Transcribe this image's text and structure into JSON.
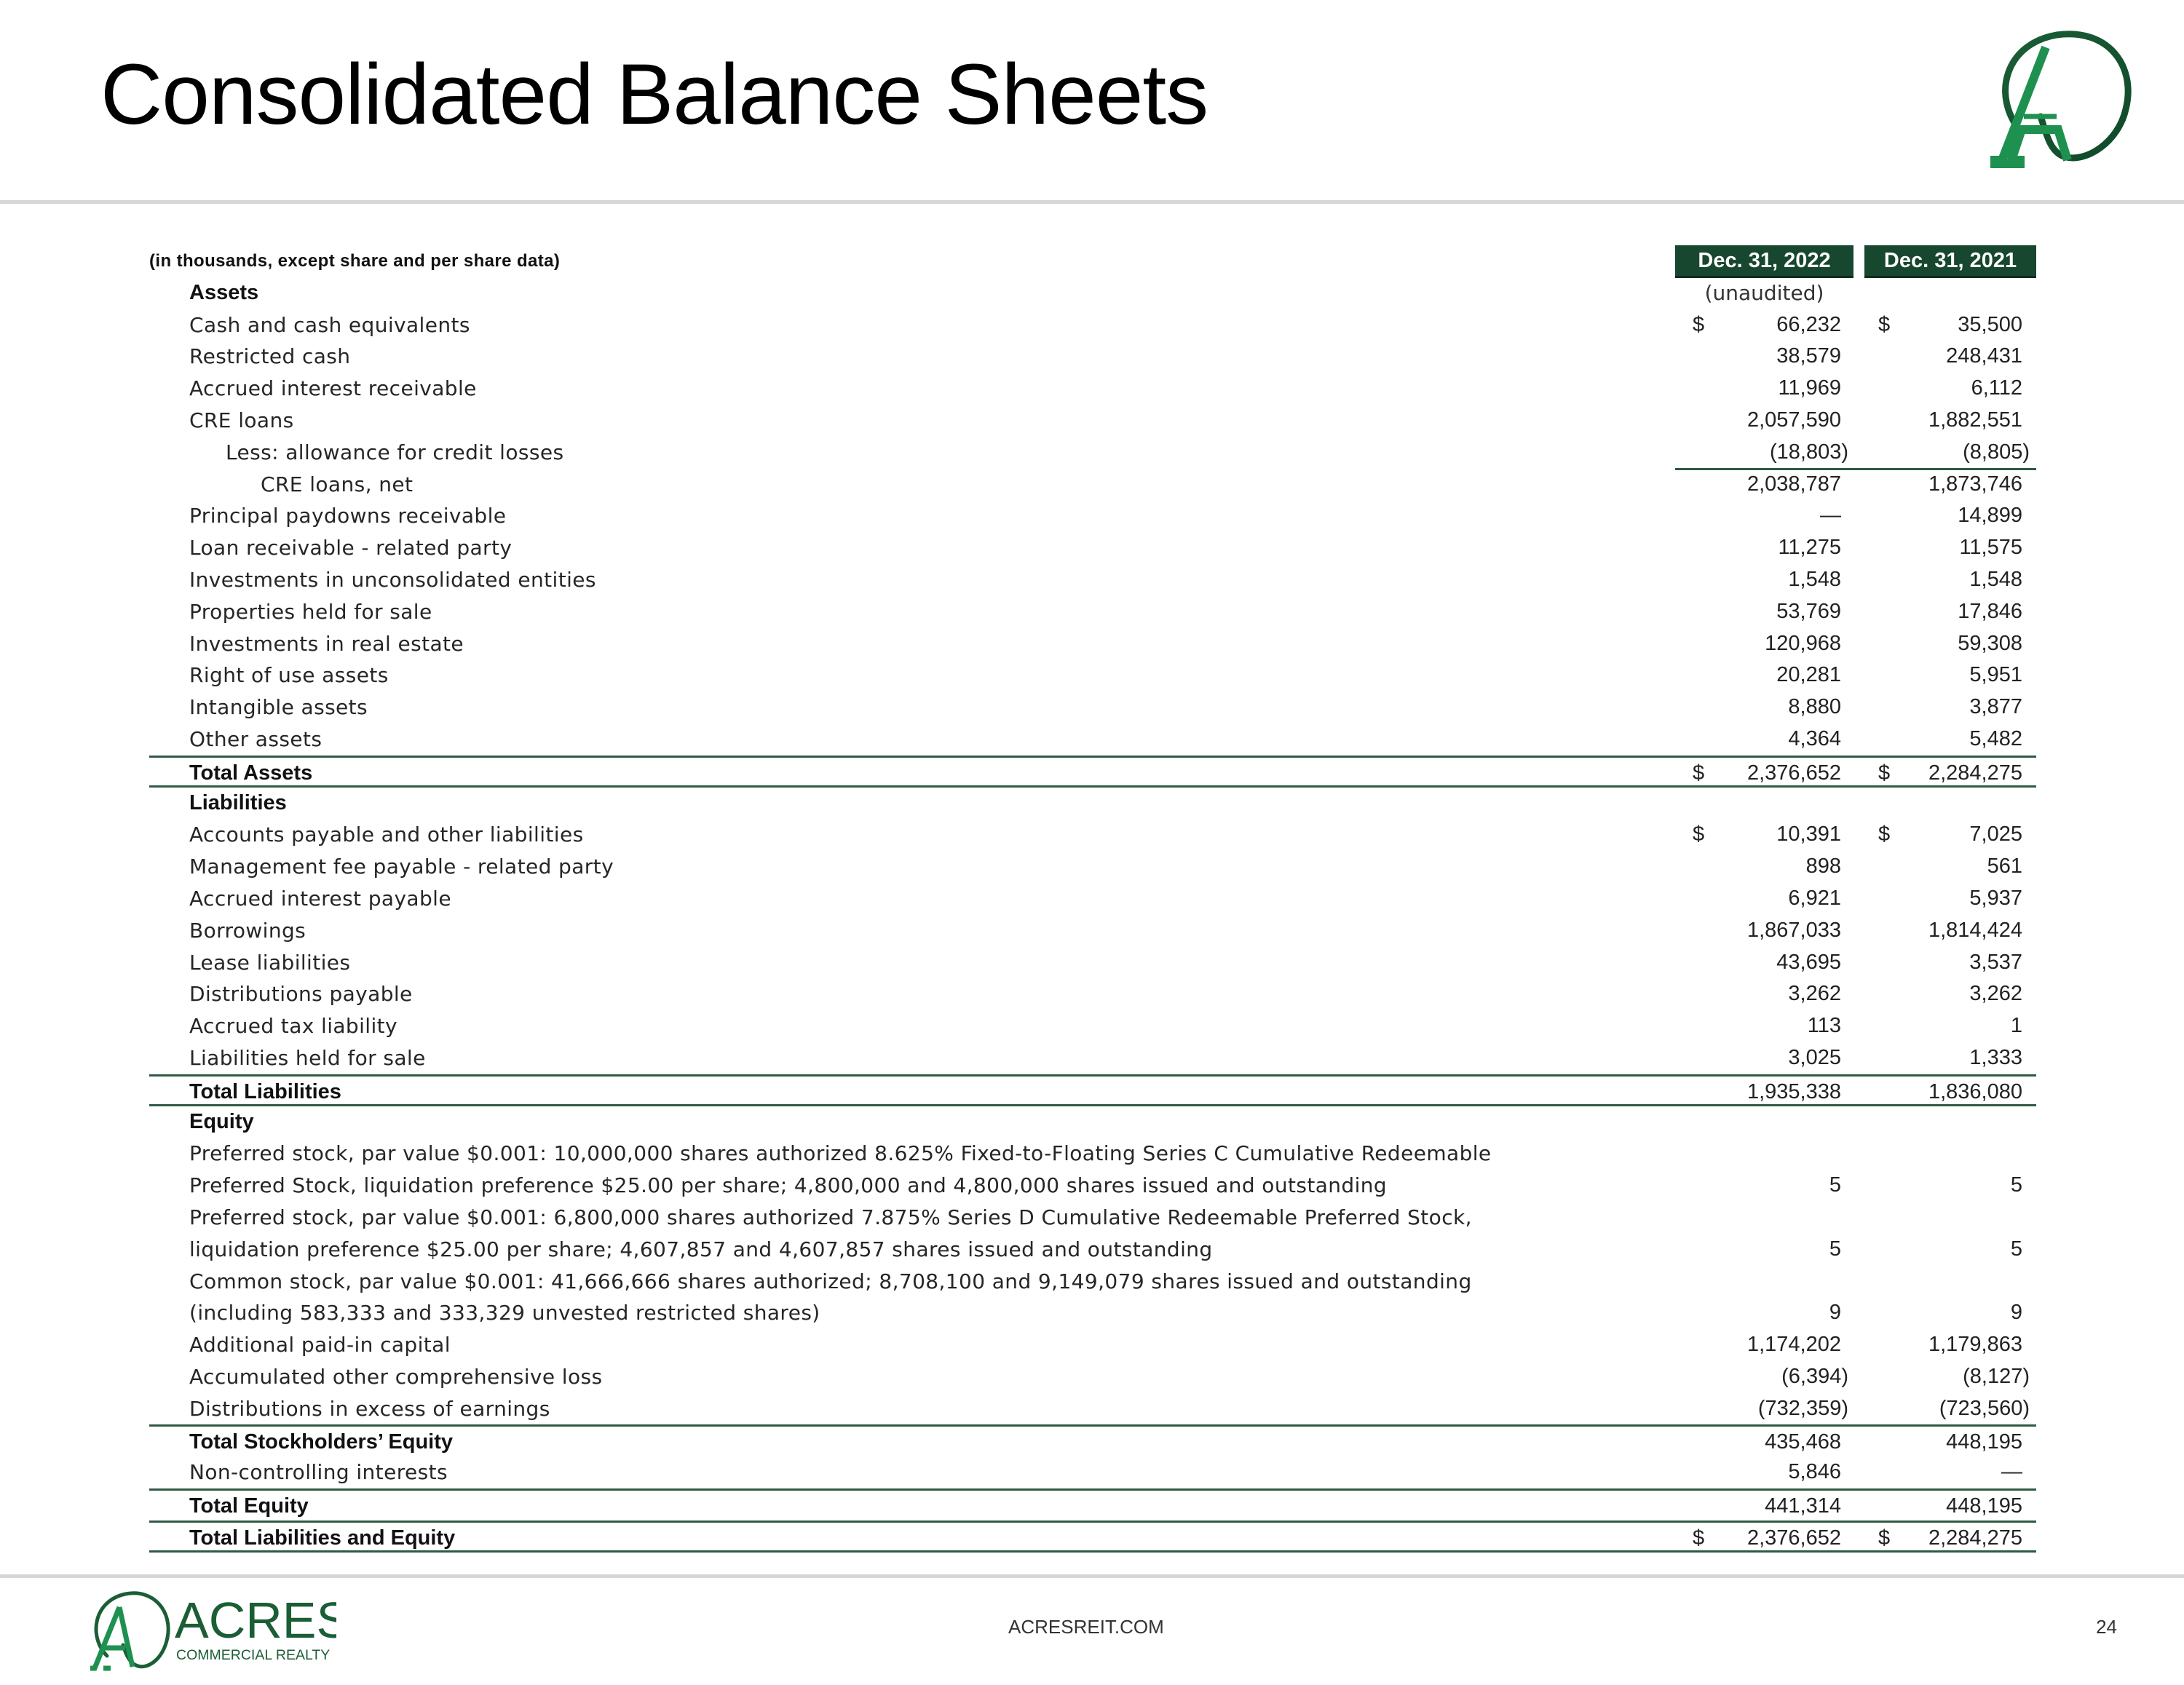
{
  "page": {
    "title": "Consolidated Balance Sheets",
    "footer_url": "ACRESREIT.COM",
    "page_number": "24",
    "brand": {
      "name": "ACRES",
      "tagline": "COMMERCIAL REALTY",
      "logo_letter": "A",
      "color_dark": "#1b5e36",
      "color_light": "#1e9150"
    }
  },
  "table": {
    "note": "(in thousands, except share and per share data)",
    "columns": [
      "Dec. 31, 2022",
      "Dec. 31, 2021"
    ],
    "column_subtitle": "(unaudited)",
    "header_color": "#17472e",
    "rows": [
      {
        "label": "Assets",
        "bold": true,
        "indent": 1
      },
      {
        "label": "Cash and cash equivalents",
        "indent": 1,
        "d1": "$",
        "v1": "66,232",
        "d2": "$",
        "v2": "35,500"
      },
      {
        "label": "Restricted cash",
        "indent": 1,
        "v1": "38,579",
        "v2": "248,431"
      },
      {
        "label": "Accrued interest receivable",
        "indent": 1,
        "v1": "11,969",
        "v2": "6,112"
      },
      {
        "label": "CRE loans",
        "indent": 1,
        "v1": "2,057,590",
        "v2": "1,882,551"
      },
      {
        "label": "Less: allowance for credit losses",
        "indent": 2,
        "v1": "(18,803)",
        "v2": "(8,805)",
        "col_rule_below": true
      },
      {
        "label": "CRE loans, net",
        "indent": 3,
        "v1": "2,038,787",
        "v2": "1,873,746"
      },
      {
        "label": "Principal paydowns receivable",
        "indent": 1,
        "v1": "—",
        "v2": "14,899"
      },
      {
        "label": "Loan receivable - related party",
        "indent": 1,
        "v1": "11,275",
        "v2": "11,575"
      },
      {
        "label": "Investments in unconsolidated entities",
        "indent": 1,
        "v1": "1,548",
        "v2": "1,548"
      },
      {
        "label": "Properties held for sale",
        "indent": 1,
        "v1": "53,769",
        "v2": "17,846"
      },
      {
        "label": "Investments in real estate",
        "indent": 1,
        "v1": "120,968",
        "v2": "59,308"
      },
      {
        "label": "Right of use assets",
        "indent": 1,
        "v1": "20,281",
        "v2": "5,951"
      },
      {
        "label": "Intangible assets",
        "indent": 1,
        "v1": "8,880",
        "v2": "3,877"
      },
      {
        "label": "Other assets",
        "indent": 1,
        "v1": "4,364",
        "v2": "5,482"
      },
      {
        "label": "Total Assets",
        "bold": true,
        "indent": 1,
        "d1": "$",
        "v1": "2,376,652",
        "d2": "$",
        "v2": "2,284,275",
        "rule_above": true,
        "rule_below": true
      },
      {
        "label": "Liabilities",
        "bold": true,
        "indent": 1
      },
      {
        "label": "Accounts payable and other liabilities",
        "indent": 1,
        "d1": "$",
        "v1": "10,391",
        "d2": "$",
        "v2": "7,025"
      },
      {
        "label": "Management fee payable - related party",
        "indent": 1,
        "v1": "898",
        "v2": "561"
      },
      {
        "label": "Accrued interest payable",
        "indent": 1,
        "v1": "6,921",
        "v2": "5,937"
      },
      {
        "label": "Borrowings",
        "indent": 1,
        "v1": "1,867,033",
        "v2": "1,814,424"
      },
      {
        "label": "Lease liabilities",
        "indent": 1,
        "v1": "43,695",
        "v2": "3,537"
      },
      {
        "label": "Distributions payable",
        "indent": 1,
        "v1": "3,262",
        "v2": "3,262"
      },
      {
        "label": "Accrued tax liability",
        "indent": 1,
        "v1": "113",
        "v2": "1"
      },
      {
        "label": "Liabilities held for sale",
        "indent": 1,
        "v1": "3,025",
        "v2": "1,333"
      },
      {
        "label": "Total Liabilities",
        "bold": true,
        "indent": 1,
        "v1": "1,935,338",
        "v2": "1,836,080",
        "rule_above": true,
        "rule_below": true
      },
      {
        "label": "Equity",
        "bold": true,
        "indent": 1
      },
      {
        "label": "Preferred stock, par value $0.001:  10,000,000 shares authorized 8.625% Fixed-to-Floating Series C Cumulative Redeemable",
        "indent": 1
      },
      {
        "label": "Preferred Stock, liquidation preference $25.00 per share; 4,800,000 and 4,800,000 shares issued and outstanding",
        "indent": 1,
        "v1": "5",
        "v2": "5"
      },
      {
        "label": "Preferred stock, par value $0.001:  6,800,000 shares authorized 7.875% Series D Cumulative Redeemable Preferred Stock,",
        "indent": 1
      },
      {
        "label": "liquidation preference $25.00 per share; 4,607,857 and 4,607,857 shares issued and outstanding",
        "indent": 1,
        "v1": "5",
        "v2": "5"
      },
      {
        "label": "Common stock, par value $0.001:  41,666,666 shares authorized; 8,708,100 and 9,149,079 shares issued and outstanding",
        "indent": 1
      },
      {
        "label": "(including 583,333 and 333,329 unvested restricted shares)",
        "indent": 1,
        "v1": "9",
        "v2": "9"
      },
      {
        "label": "Additional paid-in capital",
        "indent": 1,
        "v1": "1,174,202",
        "v2": "1,179,863"
      },
      {
        "label": "Accumulated other comprehensive loss",
        "indent": 1,
        "v1": "(6,394)",
        "v2": "(8,127)"
      },
      {
        "label": "Distributions in excess of earnings",
        "indent": 1,
        "v1": "(732,359)",
        "v2": "(723,560)"
      },
      {
        "label": "Total Stockholders’ Equity",
        "bold": true,
        "indent": 1,
        "v1": "435,468",
        "v2": "448,195",
        "rule_above": true
      },
      {
        "label": "Non-controlling interests",
        "indent": 1,
        "v1": "5,846",
        "v2": "—"
      },
      {
        "label": "Total Equity",
        "bold": true,
        "indent": 1,
        "v1": "441,314",
        "v2": "448,195",
        "rule_above": true
      },
      {
        "label": "Total Liabilities and Equity",
        "bold": true,
        "indent": 1,
        "d1": "$",
        "v1": "2,376,652",
        "d2": "$",
        "v2": "2,284,275",
        "rule_above": true,
        "rule_below": true
      }
    ]
  }
}
